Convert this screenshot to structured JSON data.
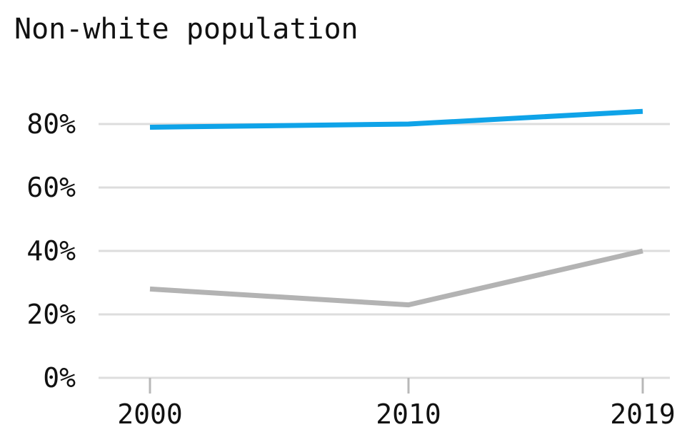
{
  "chart_data": {
    "type": "line",
    "title": "Non-white population",
    "x": [
      "2000",
      "2010",
      "2019"
    ],
    "series": [
      {
        "values": [
          79,
          80,
          84
        ],
        "color": "#0fa3e8"
      },
      {
        "values": [
          28,
          23,
          40
        ],
        "color": "#b3b3b3"
      }
    ],
    "ylim": [
      0,
      80
    ],
    "yticks": [
      0,
      20,
      40,
      60,
      80
    ],
    "ytick_labels": [
      "0%",
      "20%",
      "40%",
      "60%",
      "80%"
    ],
    "grid": true,
    "gridline_color": "#dddddd"
  }
}
